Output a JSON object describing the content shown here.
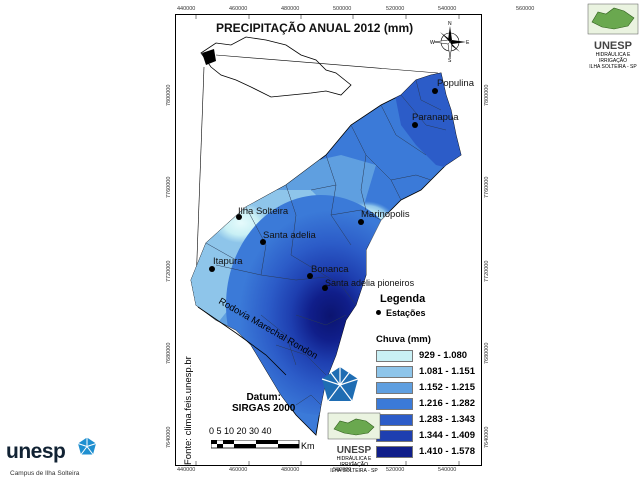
{
  "title": "PRECIPITAÇÃO ANUAL 2012 (mm)",
  "coords_top": [
    "440000",
    "460000",
    "480000",
    "500000",
    "520000",
    "540000",
    "560000"
  ],
  "coords_left": [
    "7800000",
    "7760000",
    "7720000",
    "7680000",
    "7640000"
  ],
  "compass": {
    "n": "N",
    "s": "S",
    "e": "E",
    "w": "W"
  },
  "cities": [
    {
      "name": "Populina"
    },
    {
      "name": "Paranapua"
    },
    {
      "name": "Marinopolis"
    },
    {
      "name": "Ilha Solteira"
    },
    {
      "name": "Santa adelia"
    },
    {
      "name": "Itapura"
    },
    {
      "name": "Bonanca"
    },
    {
      "name": "Santa adelia pioneiros"
    }
  ],
  "legend": {
    "title": "Legenda",
    "stations": "Estações",
    "chuva": "Chuva (mm)",
    "classes": [
      {
        "label": "929 - 1.080",
        "color": "#c9f0f5"
      },
      {
        "label": "1.081 - 1.151",
        "color": "#8ec5ea"
      },
      {
        "label": "1.152 - 1.215",
        "color": "#5f9fe0"
      },
      {
        "label": "1.216 - 1.282",
        "color": "#3b7ad8"
      },
      {
        "label": "1.283 - 1.343",
        "color": "#2c5cc8"
      },
      {
        "label": "1.344 - 1.409",
        "color": "#1e3fb0"
      },
      {
        "label": "1.410 - 1.578",
        "color": "#101e8a"
      }
    ]
  },
  "road": "Rodovia Marechal Rondon",
  "source": "Fonte: clima.feis.unesp.br",
  "datum": {
    "line1": "Datum:",
    "line2": "SIRGAS 2000"
  },
  "scale": {
    "ticks": "0  5 10   20   30   40",
    "unit": "Km"
  },
  "logo_top": {
    "name": "UNESP",
    "sub1": "HIDRÁULICA E IRRIGAÇÃO",
    "sub2": "ILHA SOLTEIRA - SP"
  },
  "logo_mid": {
    "name": "UNESP",
    "sub1": "HIDRÁULICA E IRRIGAÇÃO",
    "sub2": "ILHA SOLTEIRA - SP"
  },
  "footer": {
    "brand": "unesp",
    "campus": "Campus de Ilha Solteira"
  }
}
